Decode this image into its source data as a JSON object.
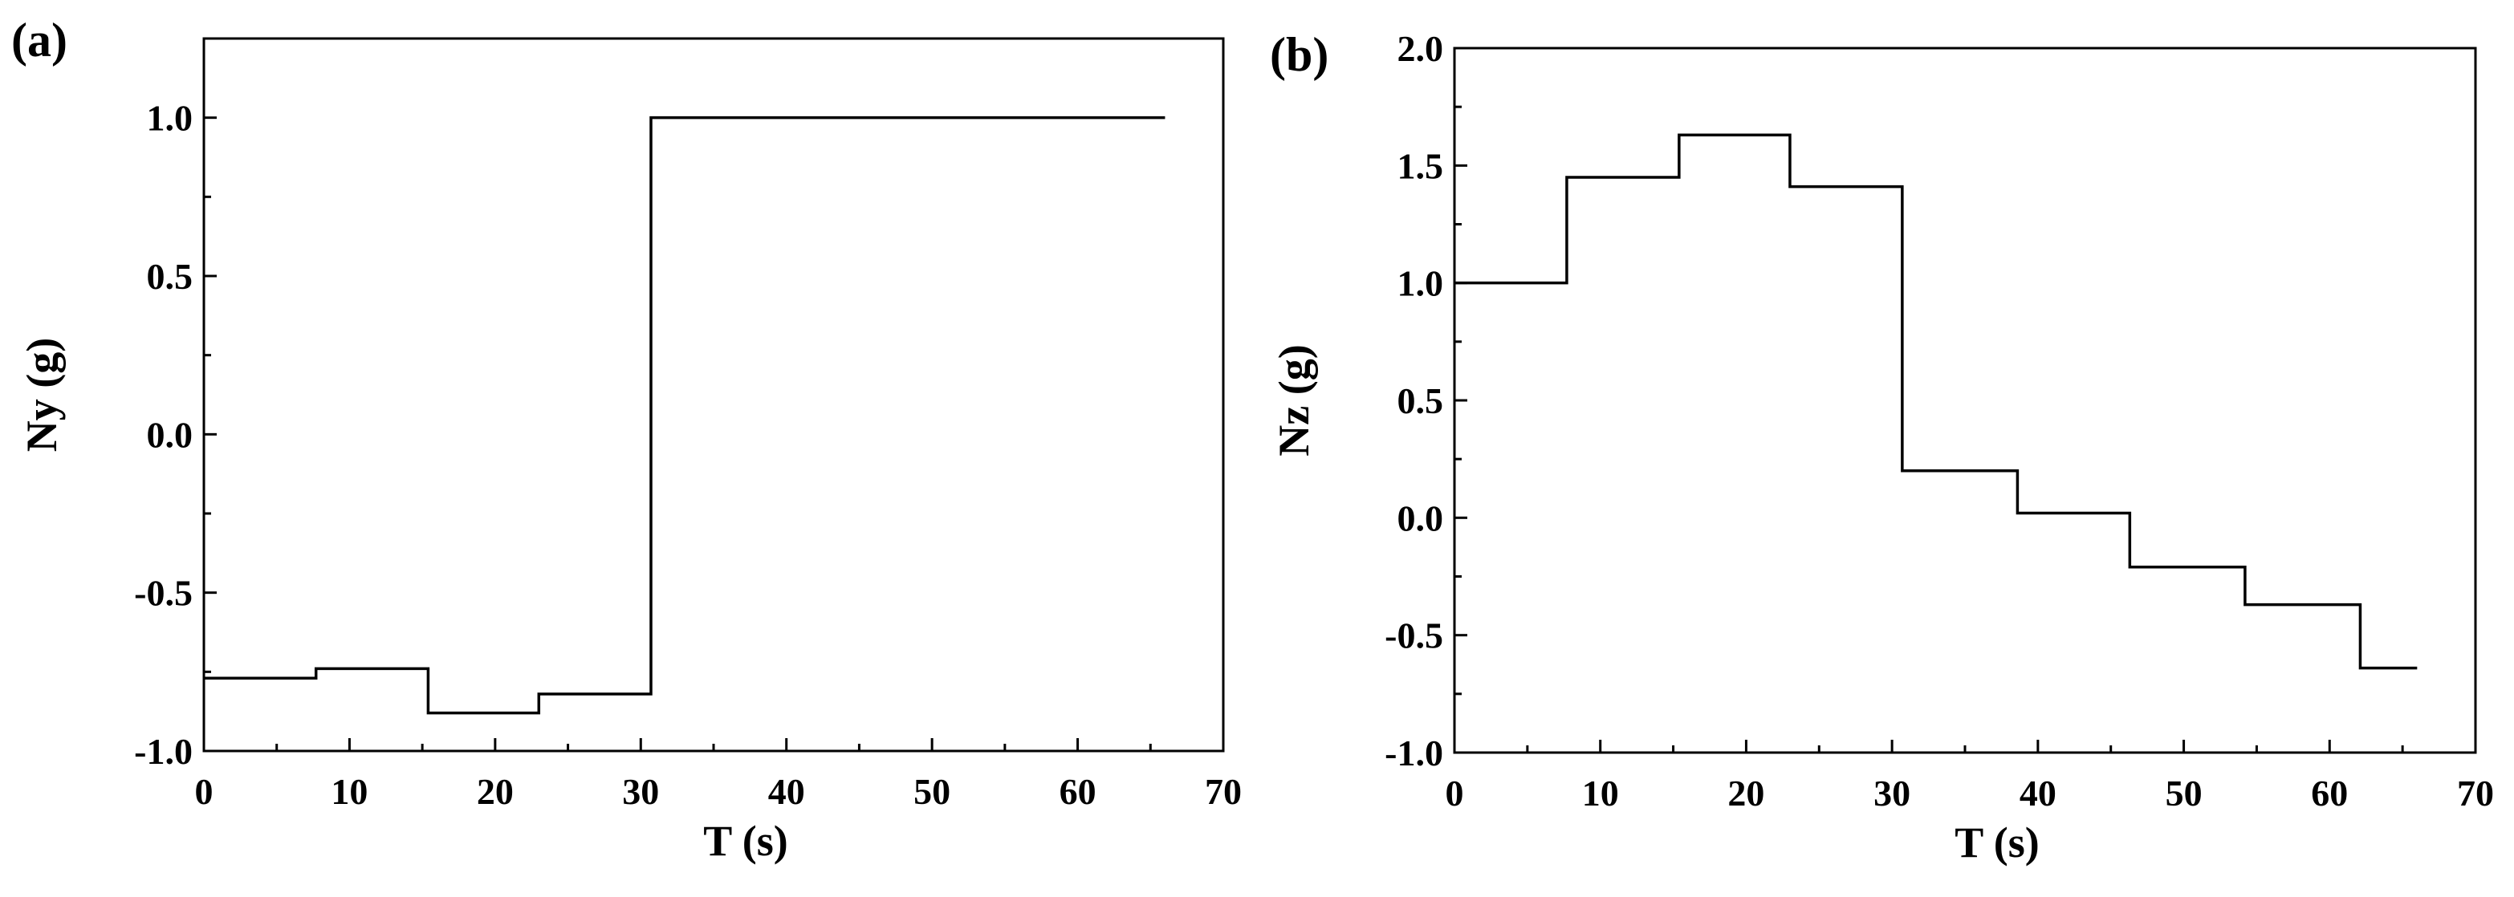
{
  "chart_data": [
    {
      "type": "line",
      "panel_label": "(a)",
      "xlabel": "T (s)",
      "ylabel": "Ny (g)",
      "xlim": [
        0,
        70
      ],
      "ylim": [
        -1.0,
        1.25
      ],
      "xticks": [
        0,
        10,
        20,
        30,
        40,
        50,
        60,
        70
      ],
      "xtick_labels": [
        "0",
        "10",
        "20",
        "30",
        "40",
        "50",
        "60",
        "70"
      ],
      "yticks": [
        -1.0,
        -0.5,
        0.0,
        0.5,
        1.0
      ],
      "ytick_labels": [
        "-1.0",
        "-0.5",
        "0.0",
        "0.5",
        "1.0"
      ],
      "grid": false,
      "series": [
        {
          "color": "#000000",
          "step": true,
          "x": [
            0,
            7.7,
            15.4,
            23.0,
            30.7,
            66
          ],
          "y": [
            -0.77,
            -0.74,
            -0.88,
            -0.82,
            1.0,
            1.0
          ]
        }
      ]
    },
    {
      "type": "line",
      "panel_label": "(b)",
      "xlabel": "T (s)",
      "ylabel": "Nz (g)",
      "xlim": [
        0,
        70
      ],
      "ylim": [
        -1.0,
        2.0
      ],
      "xticks": [
        0,
        10,
        20,
        30,
        40,
        50,
        60,
        70
      ],
      "xtick_labels": [
        "0",
        "10",
        "20",
        "30",
        "40",
        "50",
        "60",
        "70"
      ],
      "yticks": [
        -1.0,
        -0.5,
        0.0,
        0.5,
        1.0,
        1.5,
        2.0
      ],
      "ytick_labels": [
        "-1.0",
        "-0.5",
        "0.0",
        "0.5",
        "1.0",
        "1.5",
        "2.0"
      ],
      "grid": false,
      "series": [
        {
          "color": "#000000",
          "step": true,
          "x": [
            0,
            7.7,
            15.4,
            23.0,
            30.7,
            38.6,
            46.3,
            54.2,
            62.1,
            66
          ],
          "y": [
            1.0,
            1.45,
            1.63,
            1.41,
            0.2,
            0.02,
            -0.21,
            -0.37,
            -0.64,
            -0.64
          ]
        }
      ]
    }
  ]
}
